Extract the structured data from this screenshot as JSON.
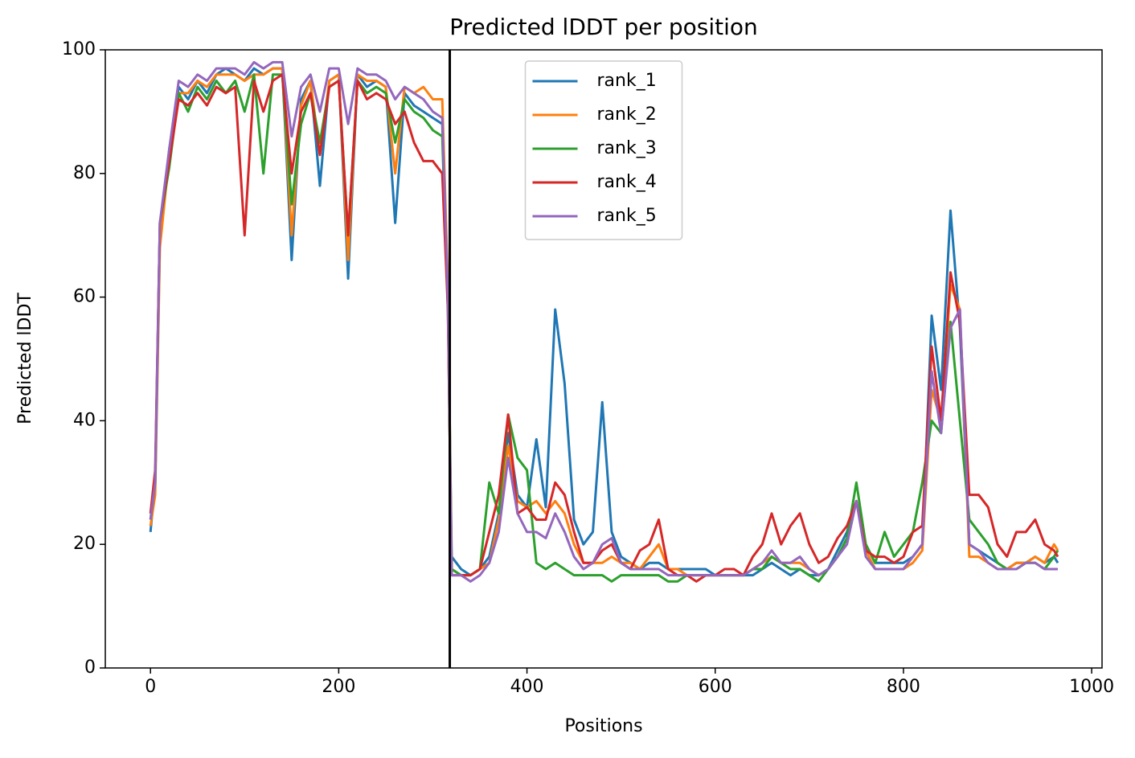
{
  "chart_data": {
    "type": "line",
    "title": "Predicted lDDT per position",
    "xlabel": "Positions",
    "ylabel": "Predicted lDDT",
    "x": [
      0,
      5,
      10,
      20,
      30,
      40,
      50,
      60,
      70,
      80,
      90,
      100,
      110,
      120,
      130,
      140,
      150,
      160,
      170,
      180,
      190,
      200,
      210,
      220,
      230,
      240,
      250,
      260,
      270,
      280,
      290,
      300,
      310,
      316,
      320,
      330,
      340,
      350,
      360,
      370,
      380,
      390,
      400,
      410,
      420,
      430,
      440,
      450,
      460,
      470,
      480,
      490,
      500,
      510,
      520,
      530,
      540,
      550,
      560,
      570,
      580,
      590,
      600,
      610,
      620,
      630,
      640,
      650,
      660,
      670,
      680,
      690,
      700,
      710,
      720,
      730,
      740,
      750,
      760,
      770,
      780,
      790,
      800,
      810,
      820,
      830,
      840,
      850,
      860,
      870,
      880,
      890,
      900,
      910,
      920,
      930,
      940,
      950,
      960,
      964
    ],
    "series": [
      {
        "name": "rank_1",
        "color": "#1f77b4",
        "values": [
          22,
          30,
          70,
          84,
          94,
          92,
          95,
          93,
          96,
          97,
          96,
          95,
          97,
          96,
          97,
          97,
          66,
          92,
          95,
          78,
          95,
          96,
          63,
          96,
          94,
          95,
          94,
          72,
          93,
          91,
          90,
          89,
          88,
          60,
          18,
          16,
          15,
          16,
          18,
          25,
          38,
          28,
          26,
          37,
          26,
          58,
          46,
          24,
          20,
          22,
          43,
          22,
          18,
          17,
          16,
          17,
          17,
          16,
          16,
          16,
          16,
          16,
          15,
          15,
          15,
          15,
          15,
          16,
          17,
          16,
          15,
          16,
          15,
          15,
          16,
          19,
          22,
          27,
          20,
          17,
          17,
          17,
          17,
          18,
          20,
          57,
          45,
          74,
          55,
          20,
          19,
          18,
          17,
          16,
          17,
          17,
          18,
          17,
          18,
          17
        ]
      },
      {
        "name": "rank_2",
        "color": "#ff7f0e",
        "values": [
          23,
          28,
          68,
          83,
          93,
          93,
          95,
          94,
          96,
          96,
          96,
          95,
          96,
          96,
          97,
          97,
          70,
          91,
          95,
          83,
          95,
          96,
          66,
          96,
          95,
          95,
          94,
          80,
          94,
          93,
          94,
          92,
          92,
          62,
          16,
          15,
          15,
          16,
          17,
          24,
          36,
          27,
          26,
          27,
          25,
          27,
          25,
          20,
          17,
          17,
          17,
          18,
          17,
          17,
          16,
          18,
          20,
          16,
          16,
          15,
          15,
          15,
          15,
          15,
          15,
          15,
          16,
          17,
          18,
          17,
          17,
          17,
          16,
          15,
          16,
          18,
          21,
          27,
          19,
          16,
          16,
          16,
          16,
          17,
          19,
          45,
          40,
          62,
          58,
          18,
          18,
          17,
          16,
          16,
          17,
          17,
          18,
          17,
          20,
          19
        ]
      },
      {
        "name": "rank_3",
        "color": "#2ca02c",
        "values": [
          24,
          30,
          72,
          81,
          93,
          90,
          94,
          92,
          95,
          93,
          95,
          90,
          96,
          80,
          96,
          96,
          75,
          88,
          93,
          85,
          94,
          95,
          70,
          95,
          93,
          94,
          93,
          85,
          92,
          90,
          89,
          87,
          86,
          58,
          16,
          15,
          15,
          16,
          30,
          25,
          41,
          34,
          32,
          17,
          16,
          17,
          16,
          15,
          15,
          15,
          15,
          14,
          15,
          15,
          15,
          15,
          15,
          14,
          14,
          15,
          15,
          15,
          15,
          15,
          15,
          15,
          16,
          16,
          18,
          17,
          16,
          16,
          15,
          14,
          16,
          18,
          21,
          30,
          20,
          17,
          22,
          18,
          20,
          22,
          30,
          40,
          38,
          56,
          40,
          24,
          22,
          20,
          17,
          16,
          16,
          17,
          17,
          16,
          18,
          19
        ]
      },
      {
        "name": "rank_4",
        "color": "#d62728",
        "values": [
          25,
          32,
          72,
          82,
          92,
          91,
          93,
          91,
          94,
          93,
          94,
          70,
          95,
          90,
          95,
          96,
          80,
          90,
          93,
          83,
          94,
          95,
          70,
          95,
          92,
          93,
          92,
          88,
          90,
          85,
          82,
          82,
          80,
          58,
          15,
          15,
          15,
          16,
          22,
          28,
          41,
          25,
          26,
          24,
          24,
          30,
          28,
          22,
          17,
          17,
          19,
          20,
          17,
          16,
          19,
          20,
          24,
          16,
          15,
          15,
          14,
          15,
          15,
          16,
          16,
          15,
          18,
          20,
          25,
          20,
          23,
          25,
          20,
          17,
          18,
          21,
          23,
          27,
          19,
          18,
          18,
          17,
          18,
          22,
          23,
          52,
          40,
          64,
          56,
          28,
          28,
          26,
          20,
          18,
          22,
          22,
          24,
          20,
          19,
          18
        ]
      },
      {
        "name": "rank_5",
        "color": "#9467bd",
        "values": [
          24,
          30,
          72,
          84,
          95,
          94,
          96,
          95,
          97,
          97,
          97,
          96,
          98,
          97,
          98,
          98,
          86,
          94,
          96,
          90,
          97,
          97,
          88,
          97,
          96,
          96,
          95,
          92,
          94,
          93,
          92,
          90,
          89,
          60,
          15,
          15,
          14,
          15,
          17,
          22,
          34,
          25,
          22,
          22,
          21,
          25,
          22,
          18,
          16,
          17,
          20,
          21,
          17,
          16,
          16,
          16,
          16,
          15,
          15,
          15,
          15,
          15,
          15,
          15,
          15,
          15,
          16,
          17,
          19,
          17,
          17,
          18,
          16,
          15,
          16,
          18,
          20,
          27,
          18,
          16,
          16,
          16,
          16,
          18,
          20,
          48,
          38,
          55,
          58,
          20,
          19,
          17,
          16,
          16,
          16,
          17,
          17,
          16,
          16,
          16
        ]
      }
    ],
    "vline": 318,
    "vline_color": "#000000",
    "xlim": [
      -48,
      1011
    ],
    "xticks": [
      0,
      200,
      400,
      600,
      800,
      1000
    ],
    "ylim": [
      0,
      100
    ],
    "yticks": [
      0,
      20,
      40,
      60,
      80,
      100
    ],
    "grid": false,
    "legend_loc": "upper center"
  }
}
